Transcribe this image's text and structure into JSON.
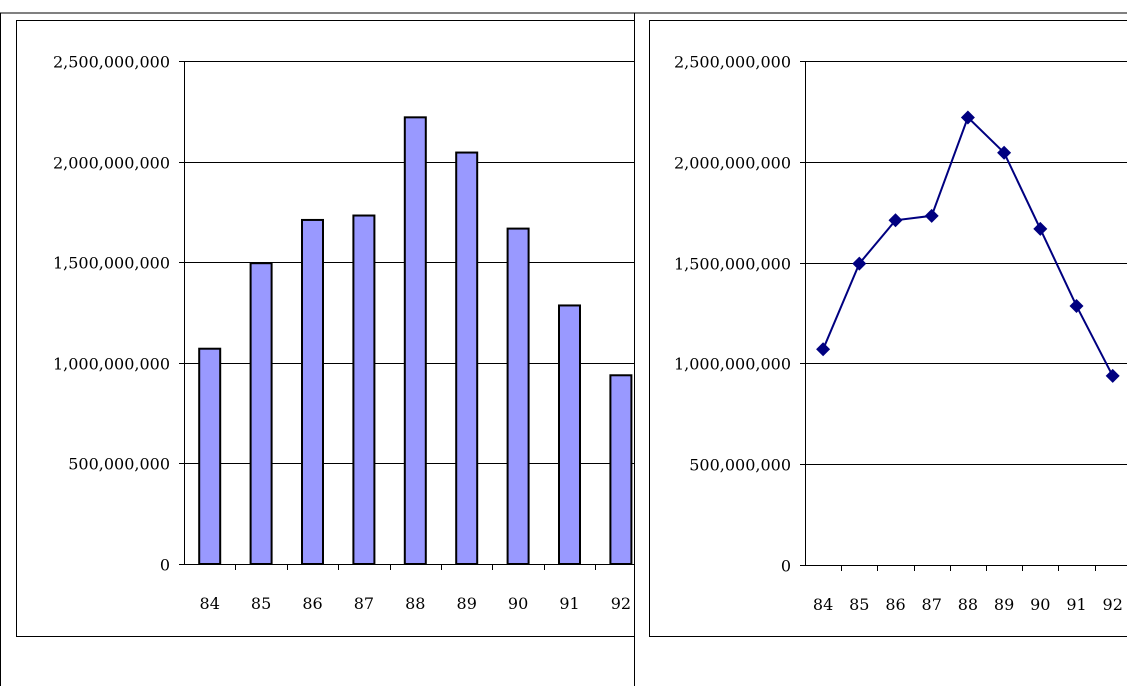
{
  "chart_data": [
    {
      "type": "bar",
      "categories": [
        "84",
        "85",
        "86",
        "87",
        "88",
        "89",
        "90",
        "91",
        "92"
      ],
      "values": [
        1070000000,
        1495000000,
        1710000000,
        1732000000,
        2220000000,
        2045000000,
        1667000000,
        1285000000,
        938000000
      ],
      "y_ticks": [
        "0",
        "500,000,000",
        "1,000,000,000",
        "1,500,000,000",
        "2,000,000,000",
        "2,500,000,000"
      ],
      "ylim": [
        0,
        2500000000
      ],
      "grid": true,
      "legend": "none",
      "colors": {
        "bar_fill": "#9999ff",
        "bar_stroke": "#000000",
        "grid": "#000000"
      }
    },
    {
      "type": "line",
      "categories": [
        "84",
        "85",
        "86",
        "87",
        "88",
        "89",
        "90",
        "91",
        "92"
      ],
      "values": [
        1070000000,
        1495000000,
        1710000000,
        1732000000,
        2220000000,
        2045000000,
        1667000000,
        1285000000,
        938000000
      ],
      "y_ticks": [
        "0",
        "500,000,000",
        "1,000,000,000",
        "1,500,000,000",
        "2,000,000,000",
        "2,500,000,000"
      ],
      "ylim": [
        0,
        2500000000
      ],
      "grid": true,
      "legend": "none",
      "marker": "diamond",
      "colors": {
        "line": "#000080",
        "marker": "#000080",
        "grid": "#000000"
      }
    }
  ]
}
